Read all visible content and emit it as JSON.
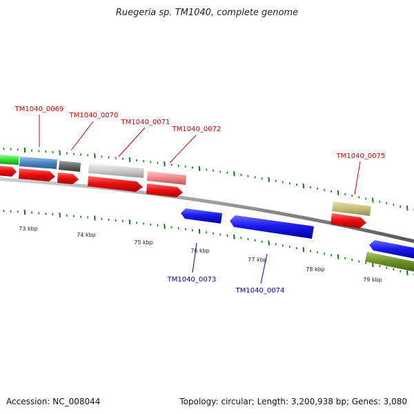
{
  "title": "Ruegeria sp. TM1040, complete genome",
  "footer": {
    "accession": "Accession: NC_008044",
    "summary": "Topology: circular; Length: 3,200,938 bp; Genes: 3,080"
  },
  "colors": {
    "label_forward": "#cc0000",
    "label_reverse": "#0000aa",
    "tick": "#117711",
    "backbone": "#8a8a8a",
    "arrow_red": "#ee1111",
    "arrow_blue": "#1a1aee"
  },
  "gene_labels": [
    {
      "id": "g0069",
      "text": "TM1040_0069",
      "strand": "forward"
    },
    {
      "id": "g0070",
      "text": "TM1040_0070",
      "strand": "forward"
    },
    {
      "id": "g0071",
      "text": "TM1040_0071",
      "strand": "forward"
    },
    {
      "id": "g0072",
      "text": "TM1040_0072",
      "strand": "forward"
    },
    {
      "id": "g0075",
      "text": "TM1040_0075",
      "strand": "forward"
    },
    {
      "id": "g0073",
      "text": "TM1040_0073",
      "strand": "reverse"
    },
    {
      "id": "g0074",
      "text": "TM1040_0074",
      "strand": "reverse"
    }
  ],
  "scale_labels": [
    "73 kbp",
    "74 kbp",
    "75 kbp",
    "76 kbp",
    "77 kbp",
    "78 kbp",
    "79 kbp"
  ]
}
